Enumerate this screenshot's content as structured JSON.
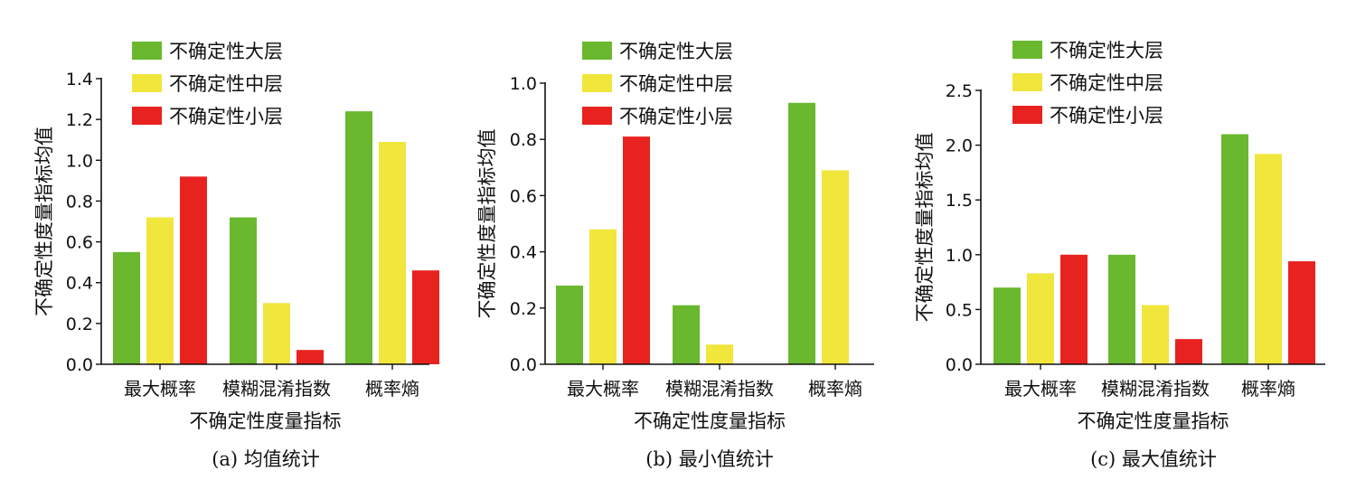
{
  "colors": {
    "series": [
      "#6ab82e",
      "#f0e63c",
      "#e8231f"
    ],
    "axis": "#111111"
  },
  "chart_data": [
    {
      "type": "bar",
      "caption": "(a) 均值统计",
      "xlabel": "不确定性度量指标",
      "ylabel": "不确定性度量指标均值",
      "categories": [
        "最大概率",
        "模糊混淆指数",
        "概率熵"
      ],
      "ylim": [
        0,
        1.4
      ],
      "yticks": [
        "0.0",
        "0.2",
        "0.4",
        "0.6",
        "0.8",
        "1.0",
        "1.2",
        "1.4"
      ],
      "legend_position": "top-left",
      "grid": false,
      "series": [
        {
          "name": "不确定性大层",
          "values": [
            0.55,
            0.72,
            1.24
          ]
        },
        {
          "name": "不确定性中层",
          "values": [
            0.72,
            0.3,
            1.09
          ]
        },
        {
          "name": "不确定性小层",
          "values": [
            0.92,
            0.07,
            0.46
          ]
        }
      ]
    },
    {
      "type": "bar",
      "caption": "(b) 最小值统计",
      "xlabel": "不确定性度量指标",
      "ylabel": "不确定性度量指标均值",
      "categories": [
        "最大概率",
        "模糊混淆指数",
        "概率熵"
      ],
      "ylim": [
        0,
        1.0
      ],
      "yticks": [
        "0.0",
        "0.2",
        "0.4",
        "0.6",
        "0.8",
        "1.0"
      ],
      "legend_position": "top-left",
      "grid": false,
      "series": [
        {
          "name": "不确定性大层",
          "values": [
            0.28,
            0.21,
            0.93
          ]
        },
        {
          "name": "不确定性中层",
          "values": [
            0.48,
            0.07,
            0.69
          ]
        },
        {
          "name": "不确定性小层",
          "values": [
            0.81,
            0.0,
            0.0
          ]
        }
      ]
    },
    {
      "type": "bar",
      "caption": "(c) 最大值统计",
      "xlabel": "不确定性度量指标",
      "ylabel": "不确定性度量指标均值",
      "categories": [
        "最大概率",
        "模糊混淆指数",
        "概率熵"
      ],
      "ylim": [
        0,
        2.5
      ],
      "yticks": [
        "0.0",
        "0.5",
        "1.0",
        "1.5",
        "2.0",
        "2.5"
      ],
      "legend_position": "top-left",
      "grid": false,
      "series": [
        {
          "name": "不确定性大层",
          "values": [
            0.7,
            1.0,
            2.1
          ]
        },
        {
          "name": "不确定性中层",
          "values": [
            0.83,
            0.54,
            1.92
          ]
        },
        {
          "name": "不确定性小层",
          "values": [
            1.0,
            0.23,
            0.94
          ]
        }
      ]
    }
  ]
}
